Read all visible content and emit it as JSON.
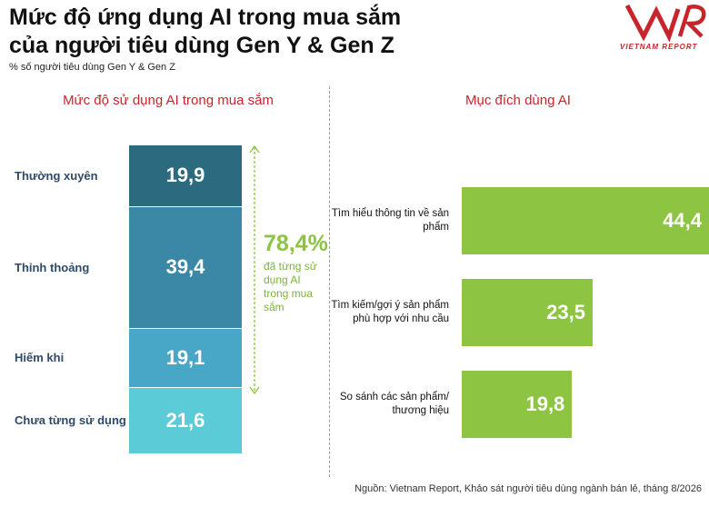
{
  "header": {
    "title_line1": "Mức độ ứng dụng AI trong mua sắm",
    "title_line2": "của người tiêu dùng Gen Y & Gen Z",
    "subtitle": "% số người tiêu dùng Gen Y & Gen Z",
    "logo_text": "VIETNAM REPORT",
    "logo_icon": "vnr-logo-icon"
  },
  "footer": {
    "source": "Nguồn: Vietnam Report, Khảo sát người tiêu dùng ngành bán lẻ, tháng 8/2026"
  },
  "colors": {
    "seg_thuong_xuyen": "#2c6a7f",
    "seg_thinh_thoang": "#3a87a6",
    "seg_hiem_khi": "#48a7c6",
    "seg_chua_tung": "#5ccbd8",
    "bar": "#8dc441",
    "accent_red": "#c8242b"
  },
  "chart_data": [
    {
      "type": "bar",
      "stacked": true,
      "title": "Mức độ sử dụng AI trong mua sắm",
      "categories": [
        "Thường xuyên",
        "Thỉnh thoảng",
        "Hiếm khi",
        "Chưa từng sử dụng"
      ],
      "values": [
        19.9,
        39.4,
        19.1,
        21.6
      ],
      "value_labels": [
        "19,9",
        "39,4",
        "19,1",
        "21,6"
      ],
      "annotation": {
        "value": "78,4%",
        "caption": "đã từng sử dụng AI trong mua sắm"
      }
    },
    {
      "type": "bar",
      "orientation": "horizontal",
      "title": "Mục đích dùng AI",
      "categories": [
        "Tìm hiểu thông tin về sản phẩm",
        "Tìm kiếm/gợi ý sản phẩm phù hợp với nhu cầu",
        "So sánh các sản phẩm/ thương hiệu"
      ],
      "values": [
        44.4,
        23.5,
        19.8
      ],
      "value_labels": [
        "44,4",
        "23,5",
        "19,8"
      ]
    }
  ]
}
